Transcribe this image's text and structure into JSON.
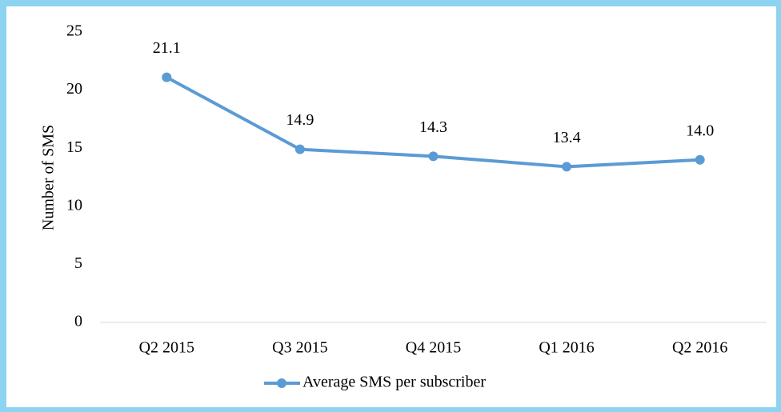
{
  "chart_data": {
    "type": "line",
    "y_axis_label": "Number of SMS",
    "categories": [
      "Q2 2015",
      "Q3 2015",
      "Q4 2015",
      "Q1 2016",
      "Q2 2016"
    ],
    "series": [
      {
        "name": "Average SMS per subscriber",
        "color": "#5b9bd5",
        "values": [
          21.1,
          14.9,
          14.3,
          13.4,
          14.0
        ],
        "value_labels": [
          "21.1",
          "14.9",
          "14.3",
          "13.4",
          "14.0"
        ]
      }
    ],
    "ylim": [
      0,
      25
    ],
    "yticks": [
      0,
      5,
      10,
      15,
      20,
      25
    ],
    "grid": false,
    "legend": "bottom"
  }
}
